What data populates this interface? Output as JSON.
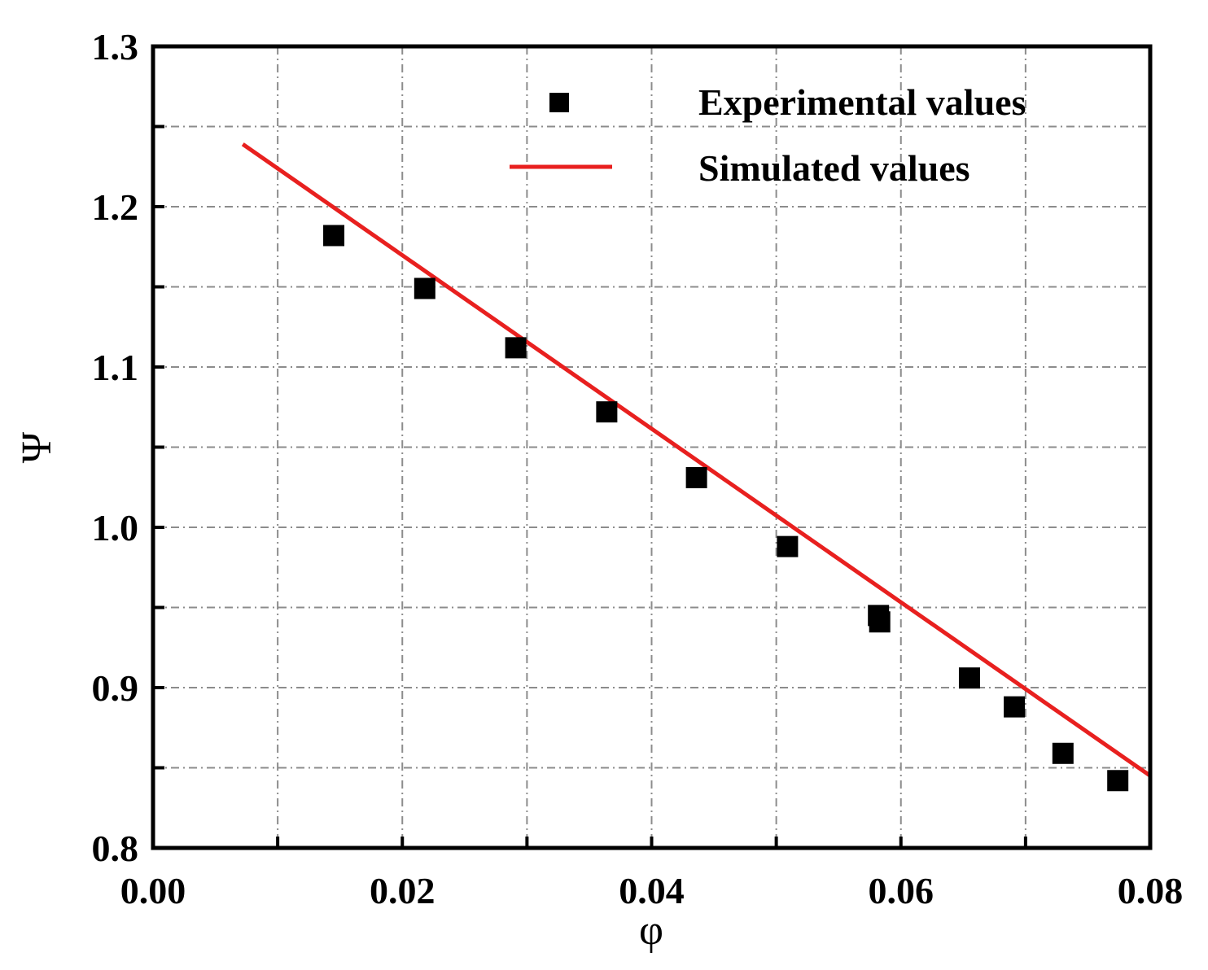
{
  "chart_data": {
    "type": "scatter",
    "xlabel": "φ",
    "ylabel": "Ψ",
    "xlim": [
      0.0,
      0.08
    ],
    "ylim": [
      0.8,
      1.3
    ],
    "x_ticks": [
      "0.00",
      "0.02",
      "0.04",
      "0.06",
      "0.08"
    ],
    "y_ticks": [
      "0.8",
      "0.9",
      "1.0",
      "1.1",
      "1.2",
      "1.3"
    ],
    "x_tick_values": [
      0.0,
      0.02,
      0.04,
      0.06,
      0.08
    ],
    "y_tick_values": [
      0.8,
      0.9,
      1.0,
      1.1,
      1.2,
      1.3
    ],
    "x_grid": [
      0.01,
      0.02,
      0.03,
      0.04,
      0.05,
      0.06,
      0.07
    ],
    "y_grid": [
      0.85,
      0.9,
      0.95,
      1.0,
      1.05,
      1.1,
      1.15,
      1.2,
      1.25
    ],
    "grid": true,
    "legend_position": "top-right",
    "series": [
      {
        "name": "Experimental values",
        "kind": "scatter",
        "marker": "square",
        "color": "#000000",
        "points": [
          [
            0.0145,
            1.182
          ],
          [
            0.0218,
            1.149
          ],
          [
            0.0291,
            1.112
          ],
          [
            0.0364,
            1.072
          ],
          [
            0.0436,
            1.031
          ],
          [
            0.0509,
            0.988
          ],
          [
            0.0582,
            0.945
          ],
          [
            0.0583,
            0.941
          ],
          [
            0.0655,
            0.906
          ],
          [
            0.0691,
            0.888
          ],
          [
            0.073,
            0.859
          ],
          [
            0.0774,
            0.842
          ]
        ]
      },
      {
        "name": "Simulated values",
        "kind": "line",
        "color": "#e8201f",
        "points": [
          [
            0.0072,
            1.239
          ],
          [
            0.08,
            0.845
          ]
        ]
      }
    ]
  }
}
